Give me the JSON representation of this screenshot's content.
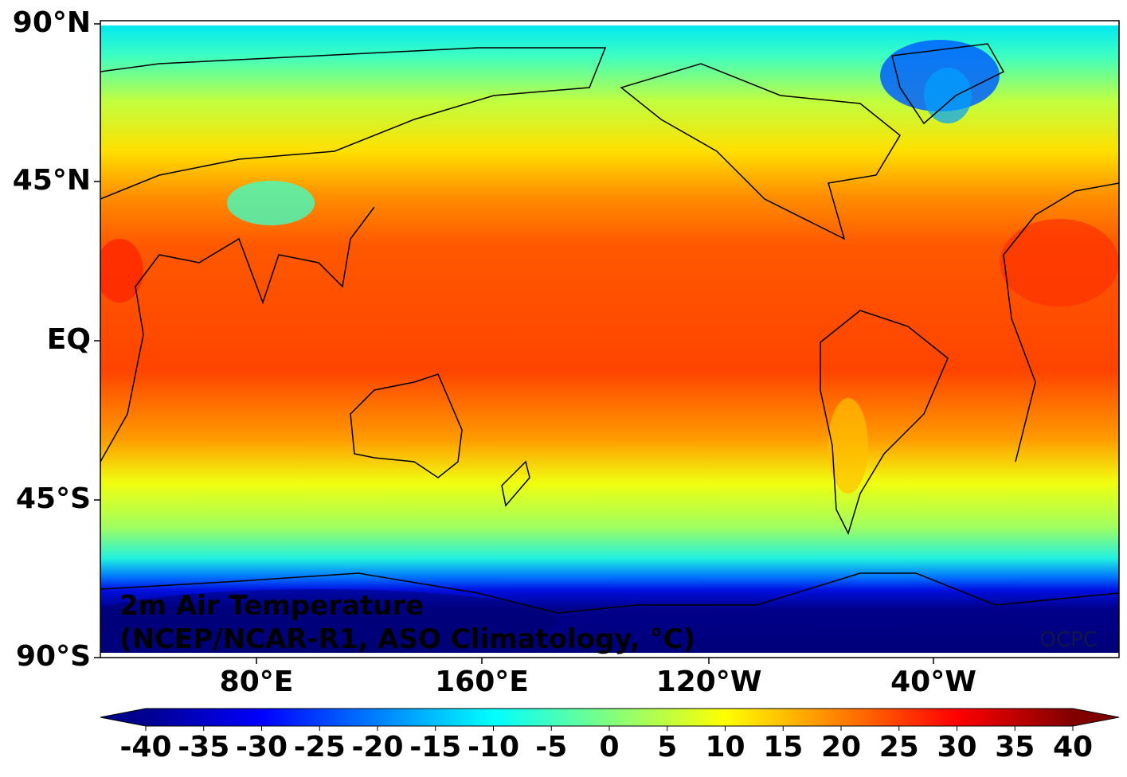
{
  "map": {
    "title": [
      "2m Air Temperature",
      "(NCEP/NCAR-R1, ASO Climatology, °C)"
    ],
    "lat_labels": [
      "90°N",
      "45°N",
      "EQ",
      "45°S",
      "90°S"
    ],
    "lon_labels": [
      "80°E",
      "160°E",
      "120°W",
      "40°W"
    ],
    "watermark": "OCPC"
  },
  "colorbar": {
    "colormap": "jet",
    "lim": [
      -40,
      40
    ],
    "ticks": [
      -40,
      -35,
      -30,
      -25,
      -20,
      -15,
      -10,
      -5,
      0,
      5,
      10,
      15,
      20,
      25,
      30,
      35,
      40
    ]
  }
}
